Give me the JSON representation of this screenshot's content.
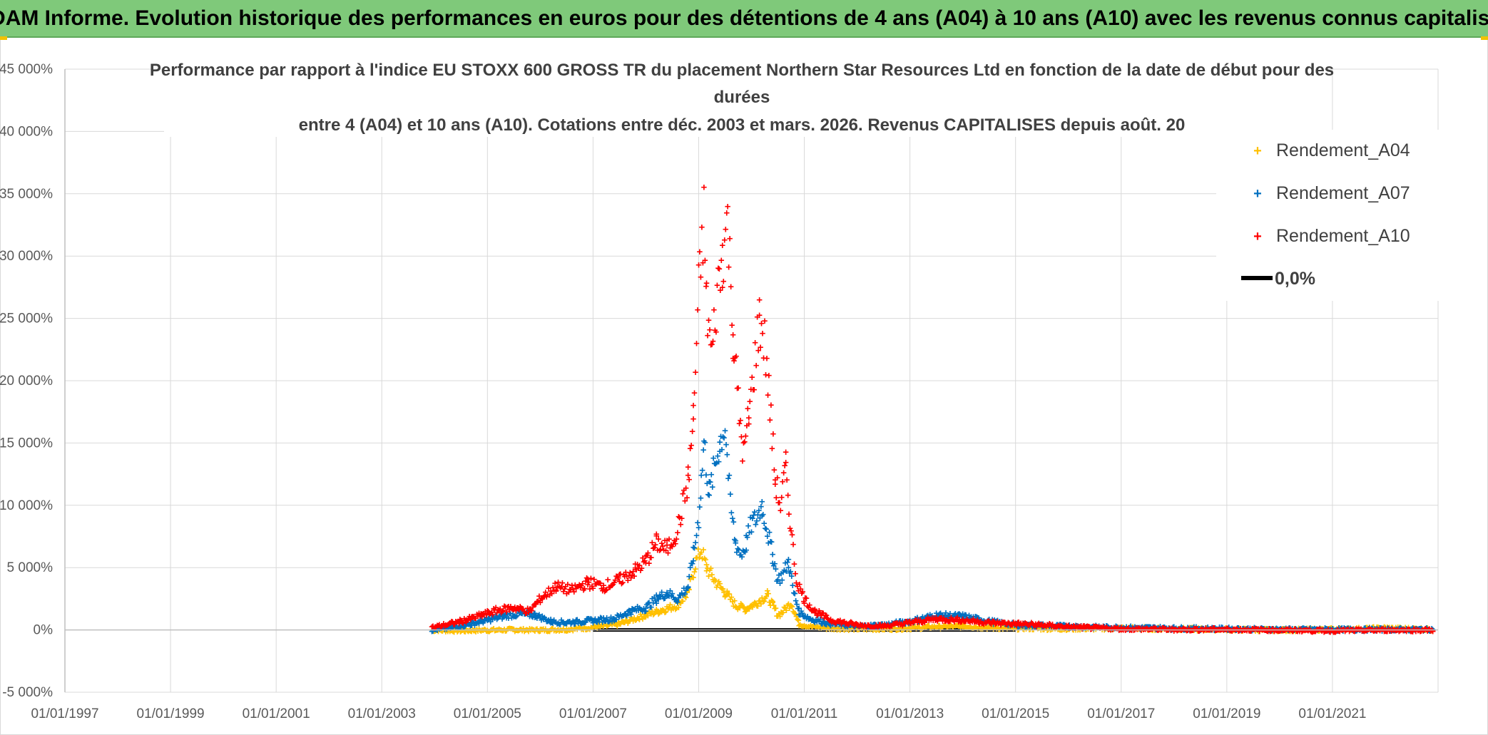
{
  "header": {
    "banner": "ADAM Informe. Evolution historique des performances en euros pour des détentions de 4 ans (A04) à 10 ans (A10) avec les revenus connus capitalisés"
  },
  "colors": {
    "banner_bg": "#7fc97a",
    "A04": "#ffc000",
    "A07": "#0070c0",
    "A10": "#ff0000",
    "zero": "#000000",
    "grid": "#d9d9d9"
  },
  "chart_data": {
    "type": "scatter",
    "title_lines": [
      "Performance par rapport à l'indice EU STOXX 600 GROSS TR  du placement Northern Star Resources Ltd en fonction de la date de début pour des",
      "durées",
      "entre 4 (A04) et 10 ans (A10). Cotations entre déc. 2003 et mars. 2026. Revenus CAPITALISES depuis août. 20"
    ],
    "xlabel": "",
    "ylabel": "",
    "x_range": [
      1997.0,
      2023.0
    ],
    "ylim": [
      -5000,
      45000
    ],
    "y_ticks": [
      {
        "v": 45000,
        "label": "45 000%"
      },
      {
        "v": 40000,
        "label": "40 000%"
      },
      {
        "v": 35000,
        "label": "35 000%"
      },
      {
        "v": 30000,
        "label": "30 000%"
      },
      {
        "v": 25000,
        "label": "25 000%"
      },
      {
        "v": 20000,
        "label": "20 000%"
      },
      {
        "v": 15000,
        "label": "15 000%"
      },
      {
        "v": 10000,
        "label": "10 000%"
      },
      {
        "v": 5000,
        "label": "5 000%"
      },
      {
        "v": 0,
        "label": "0%"
      },
      {
        "v": -5000,
        "label": "-5 000%"
      }
    ],
    "x_ticks": [
      {
        "v": 1997,
        "label": "01/01/1997"
      },
      {
        "v": 1999,
        "label": "01/01/1999"
      },
      {
        "v": 2001,
        "label": "01/01/2001"
      },
      {
        "v": 2003,
        "label": "01/01/2003"
      },
      {
        "v": 2005,
        "label": "01/01/2005"
      },
      {
        "v": 2007,
        "label": "01/01/2007"
      },
      {
        "v": 2009,
        "label": "01/01/2009"
      },
      {
        "v": 2011,
        "label": "01/01/2011"
      },
      {
        "v": 2013,
        "label": "01/01/2013"
      },
      {
        "v": 2015,
        "label": "01/01/2015"
      },
      {
        "v": 2017,
        "label": "01/01/2017"
      },
      {
        "v": 2019,
        "label": "01/01/2019"
      },
      {
        "v": 2021,
        "label": "01/01/2021"
      }
    ],
    "legend_position": "top-right",
    "series": [
      {
        "name": "Rendement_A04",
        "marker": "+",
        "color": "#ffc000",
        "points": [
          [
            2003.95,
            0
          ],
          [
            2004.5,
            -50
          ],
          [
            2005.0,
            0
          ],
          [
            2005.5,
            20
          ],
          [
            2006.0,
            0
          ],
          [
            2006.5,
            50
          ],
          [
            2007.0,
            200
          ],
          [
            2007.5,
            500
          ],
          [
            2008.0,
            1200
          ],
          [
            2008.3,
            1600
          ],
          [
            2008.6,
            2000
          ],
          [
            2008.8,
            3000
          ],
          [
            2008.95,
            5500
          ],
          [
            2009.05,
            6500
          ],
          [
            2009.15,
            5000
          ],
          [
            2009.3,
            4000
          ],
          [
            2009.5,
            3000
          ],
          [
            2009.7,
            2000
          ],
          [
            2009.9,
            1700
          ],
          [
            2010.1,
            2200
          ],
          [
            2010.3,
            2800
          ],
          [
            2010.4,
            2000
          ],
          [
            2010.5,
            1200
          ],
          [
            2010.6,
            1500
          ],
          [
            2010.75,
            2200
          ],
          [
            2010.9,
            500
          ],
          [
            2011.1,
            300
          ],
          [
            2011.5,
            150
          ],
          [
            2012.0,
            100
          ],
          [
            2012.5,
            100
          ],
          [
            2013.0,
            150
          ],
          [
            2013.5,
            250
          ],
          [
            2014.0,
            300
          ],
          [
            2014.5,
            200
          ],
          [
            2015.0,
            150
          ],
          [
            2016.0,
            100
          ],
          [
            2017.0,
            150
          ],
          [
            2018.0,
            100
          ],
          [
            2019.0,
            50
          ],
          [
            2020.0,
            0
          ],
          [
            2021.0,
            50
          ],
          [
            2022.0,
            150
          ],
          [
            2022.9,
            50
          ]
        ]
      },
      {
        "name": "Rendement_A07",
        "marker": "+",
        "color": "#0070c0",
        "points": [
          [
            2003.95,
            0
          ],
          [
            2004.3,
            200
          ],
          [
            2004.7,
            500
          ],
          [
            2005.0,
            800
          ],
          [
            2005.3,
            1100
          ],
          [
            2005.6,
            1300
          ],
          [
            2005.9,
            1200
          ],
          [
            2006.2,
            700
          ],
          [
            2006.5,
            600
          ],
          [
            2006.8,
            700
          ],
          [
            2007.1,
            800
          ],
          [
            2007.4,
            900
          ],
          [
            2007.7,
            1500
          ],
          [
            2008.0,
            1800
          ],
          [
            2008.2,
            2500
          ],
          [
            2008.4,
            3000
          ],
          [
            2008.6,
            2500
          ],
          [
            2008.8,
            3500
          ],
          [
            2008.9,
            6000
          ],
          [
            2009.0,
            9000
          ],
          [
            2009.05,
            12000
          ],
          [
            2009.1,
            15000
          ],
          [
            2009.2,
            11000
          ],
          [
            2009.3,
            13000
          ],
          [
            2009.4,
            15000
          ],
          [
            2009.5,
            16500
          ],
          [
            2009.6,
            10000
          ],
          [
            2009.7,
            7000
          ],
          [
            2009.8,
            6000
          ],
          [
            2009.9,
            7000
          ],
          [
            2010.0,
            8500
          ],
          [
            2010.1,
            9000
          ],
          [
            2010.2,
            10000
          ],
          [
            2010.3,
            8000
          ],
          [
            2010.4,
            6000
          ],
          [
            2010.5,
            4000
          ],
          [
            2010.6,
            4500
          ],
          [
            2010.7,
            5500
          ],
          [
            2010.8,
            3000
          ],
          [
            2010.9,
            1500
          ],
          [
            2011.1,
            900
          ],
          [
            2011.5,
            500
          ],
          [
            2012.0,
            300
          ],
          [
            2012.5,
            400
          ],
          [
            2013.0,
            700
          ],
          [
            2013.5,
            1200
          ],
          [
            2014.0,
            1100
          ],
          [
            2014.5,
            700
          ],
          [
            2015.0,
            400
          ],
          [
            2015.5,
            350
          ],
          [
            2016.0,
            300
          ],
          [
            2017.0,
            200
          ],
          [
            2018.0,
            150
          ],
          [
            2019.0,
            100
          ],
          [
            2020.0,
            50
          ],
          [
            2021.0,
            50
          ],
          [
            2022.0,
            50
          ],
          [
            2022.9,
            50
          ]
        ]
      },
      {
        "name": "Rendement_A10",
        "marker": "+",
        "color": "#ff0000",
        "points": [
          [
            2003.95,
            200
          ],
          [
            2004.3,
            500
          ],
          [
            2004.6,
            800
          ],
          [
            2004.9,
            1200
          ],
          [
            2005.2,
            1600
          ],
          [
            2005.5,
            1800
          ],
          [
            2005.8,
            1500
          ],
          [
            2006.0,
            2500
          ],
          [
            2006.3,
            3500
          ],
          [
            2006.6,
            3200
          ],
          [
            2006.9,
            3800
          ],
          [
            2007.2,
            3500
          ],
          [
            2007.5,
            4000
          ],
          [
            2007.8,
            4800
          ],
          [
            2008.0,
            5500
          ],
          [
            2008.2,
            7000
          ],
          [
            2008.4,
            6500
          ],
          [
            2008.6,
            8000
          ],
          [
            2008.8,
            12000
          ],
          [
            2008.9,
            17000
          ],
          [
            2009.0,
            27000
          ],
          [
            2009.1,
            33000
          ],
          [
            2009.15,
            26000
          ],
          [
            2009.25,
            22000
          ],
          [
            2009.35,
            27000
          ],
          [
            2009.45,
            30000
          ],
          [
            2009.55,
            33000
          ],
          [
            2009.65,
            24000
          ],
          [
            2009.75,
            18000
          ],
          [
            2009.85,
            14000
          ],
          [
            2009.95,
            17000
          ],
          [
            2010.05,
            21000
          ],
          [
            2010.15,
            25000
          ],
          [
            2010.25,
            23000
          ],
          [
            2010.35,
            18000
          ],
          [
            2010.45,
            12000
          ],
          [
            2010.55,
            10000
          ],
          [
            2010.65,
            13000
          ],
          [
            2010.75,
            8000
          ],
          [
            2010.85,
            4000
          ],
          [
            2011.0,
            2500
          ],
          [
            2011.2,
            1500
          ],
          [
            2011.5,
            800
          ],
          [
            2012.0,
            400
          ],
          [
            2012.5,
            300
          ],
          [
            2013.0,
            600
          ],
          [
            2013.5,
            900
          ],
          [
            2014.0,
            800
          ],
          [
            2014.5,
            600
          ],
          [
            2015.0,
            500
          ],
          [
            2015.5,
            400
          ],
          [
            2016.0,
            250
          ],
          [
            2017.0,
            100
          ],
          [
            2018.0,
            50
          ],
          [
            2019.0,
            50
          ],
          [
            2020.0,
            0
          ],
          [
            2021.0,
            -50
          ],
          [
            2022.0,
            0
          ],
          [
            2022.9,
            0
          ]
        ]
      },
      {
        "name": "0,0%",
        "marker": "line",
        "color": "#000000",
        "points": [
          [
            2007.0,
            0
          ],
          [
            2015.0,
            0
          ]
        ]
      }
    ]
  }
}
